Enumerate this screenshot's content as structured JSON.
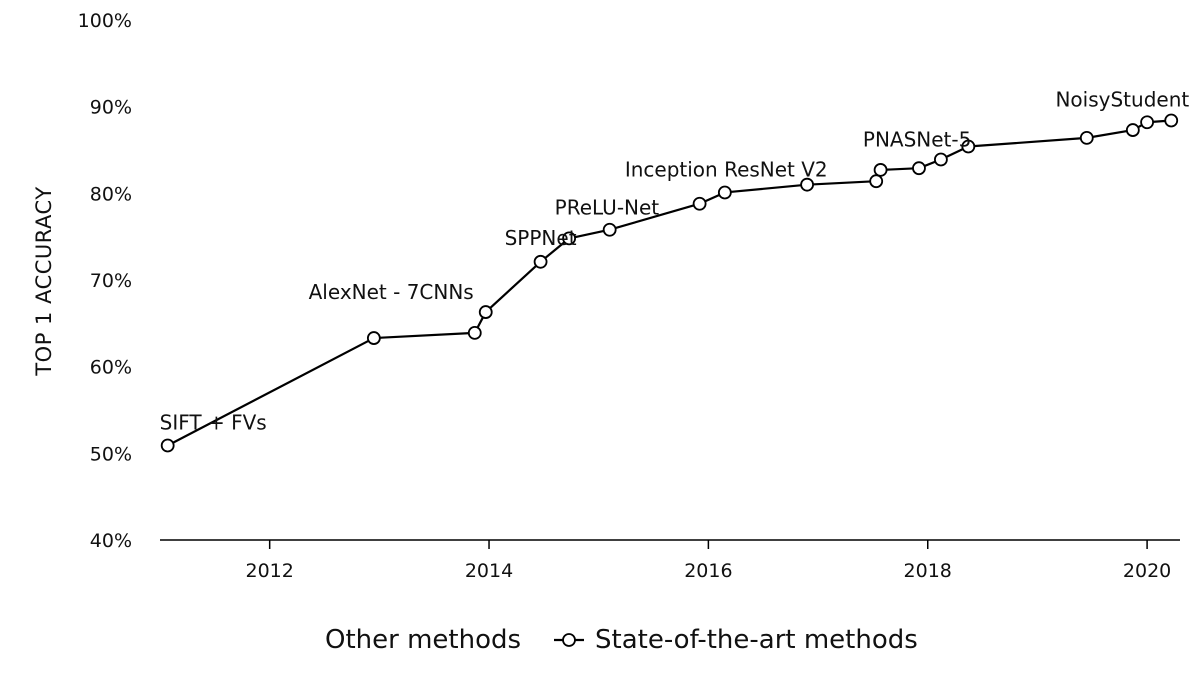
{
  "chart_data": {
    "type": "line",
    "title": "",
    "xlabel": "",
    "ylabel": "TOP 1 ACCURACY",
    "xlim": [
      2011.0,
      2020.3
    ],
    "ylim": [
      40,
      100
    ],
    "xticks": [
      2012,
      2014,
      2016,
      2018,
      2020
    ],
    "xtick_labels": [
      "2012",
      "2014",
      "2016",
      "2018",
      "2020"
    ],
    "yticks": [
      40,
      50,
      60,
      70,
      80,
      90,
      100
    ],
    "ytick_labels": [
      "40%",
      "50%",
      "60%",
      "70%",
      "80%",
      "90%",
      "100%"
    ],
    "grid": false,
    "legend_position": "bottom",
    "legend": [
      "Other methods",
      "State-of-the-art methods"
    ],
    "series": [
      {
        "name": "State-of-the-art methods",
        "x": [
          2011.07,
          2012.95,
          2013.87,
          2013.97,
          2014.47,
          2014.73,
          2015.1,
          2015.92,
          2016.15,
          2016.9,
          2017.53,
          2017.57,
          2017.92,
          2018.12,
          2018.37,
          2019.45,
          2019.87,
          2020.0,
          2020.22
        ],
        "y": [
          50.9,
          63.3,
          63.9,
          66.3,
          72.1,
          74.8,
          75.8,
          78.8,
          80.1,
          81.0,
          81.4,
          82.7,
          82.9,
          83.9,
          85.4,
          86.4,
          87.3,
          88.2,
          88.4
        ]
      }
    ],
    "annotations": [
      {
        "text": "SIFT + FVs",
        "x": 2011.07,
        "y": 50.9
      },
      {
        "text": "AlexNet - 7CNNs",
        "x": 2013.97,
        "y": 66.3
      },
      {
        "text": "SPPNet",
        "x": 2014.47,
        "y": 72.1
      },
      {
        "text": "PReLU-Net",
        "x": 2015.1,
        "y": 75.8
      },
      {
        "text": "Inception ResNet V2",
        "x": 2016.15,
        "y": 80.1
      },
      {
        "text": "PNASNet-5",
        "x": 2018.12,
        "y": 83.9
      },
      {
        "text": "NoisyStudent",
        "x": 2020.22,
        "y": 88.4
      }
    ],
    "colors": {
      "line": "#000000",
      "marker_fill": "#ffffff",
      "text": "#111111"
    }
  }
}
